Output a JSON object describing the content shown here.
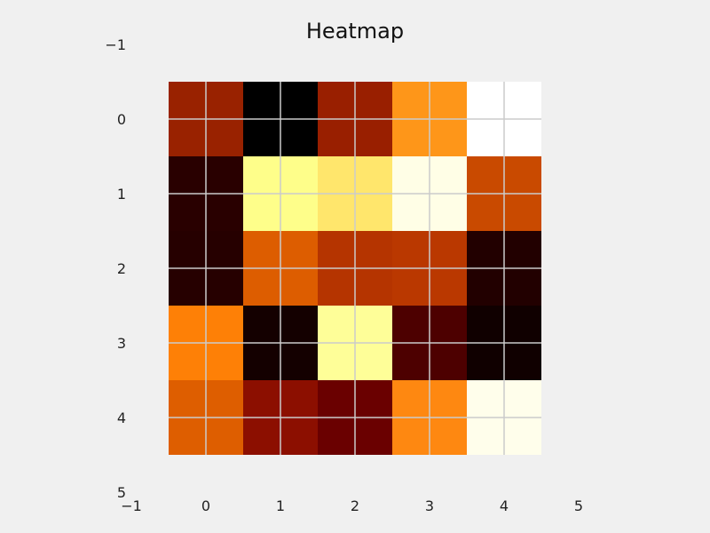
{
  "chart_data": {
    "type": "heatmap",
    "title": "Heatmap",
    "colormap": "afmhot",
    "grid": true,
    "xlim": [
      -1,
      5
    ],
    "ylim": [
      5,
      -1
    ],
    "xticks": [
      -1,
      0,
      1,
      2,
      3,
      4,
      5
    ],
    "yticks": [
      -1,
      0,
      1,
      2,
      3,
      4,
      5
    ],
    "xtick_labels": [
      "−1",
      "0",
      "1",
      "2",
      "3",
      "4",
      "5"
    ],
    "ytick_labels": [
      "−1",
      "0",
      "1",
      "2",
      "3",
      "4",
      "5"
    ],
    "xlabel": "",
    "ylabel": "",
    "rows": [
      0,
      1,
      2,
      3,
      4
    ],
    "cols": [
      0,
      1,
      2,
      3,
      4
    ],
    "values": [
      [
        0.3,
        0.0,
        0.3,
        0.78,
        1.0
      ],
      [
        0.1,
        0.95,
        0.9,
        0.99,
        0.53
      ],
      [
        0.08,
        0.58,
        0.45,
        0.47,
        0.07
      ],
      [
        0.7,
        0.04,
        0.95,
        0.17,
        0.03
      ],
      [
        0.58,
        0.28,
        0.2,
        0.7,
        0.98
      ]
    ],
    "colors": [
      [
        "#992200",
        "#000000",
        "#991f00",
        "#fe9619",
        "#ffffff"
      ],
      [
        "#290000",
        "#fefe8a",
        "#ffe66c",
        "#fffee6",
        "#c94a00"
      ],
      [
        "#260000",
        "#dd5d00",
        "#b53400",
        "#ba3800",
        "#220000"
      ],
      [
        "#fe8006",
        "#140000",
        "#fefe98",
        "#4d0000",
        "#100000"
      ],
      [
        "#de5e00",
        "#8c0f00",
        "#6a0000",
        "#fe8811",
        "#fffeeb"
      ]
    ]
  }
}
